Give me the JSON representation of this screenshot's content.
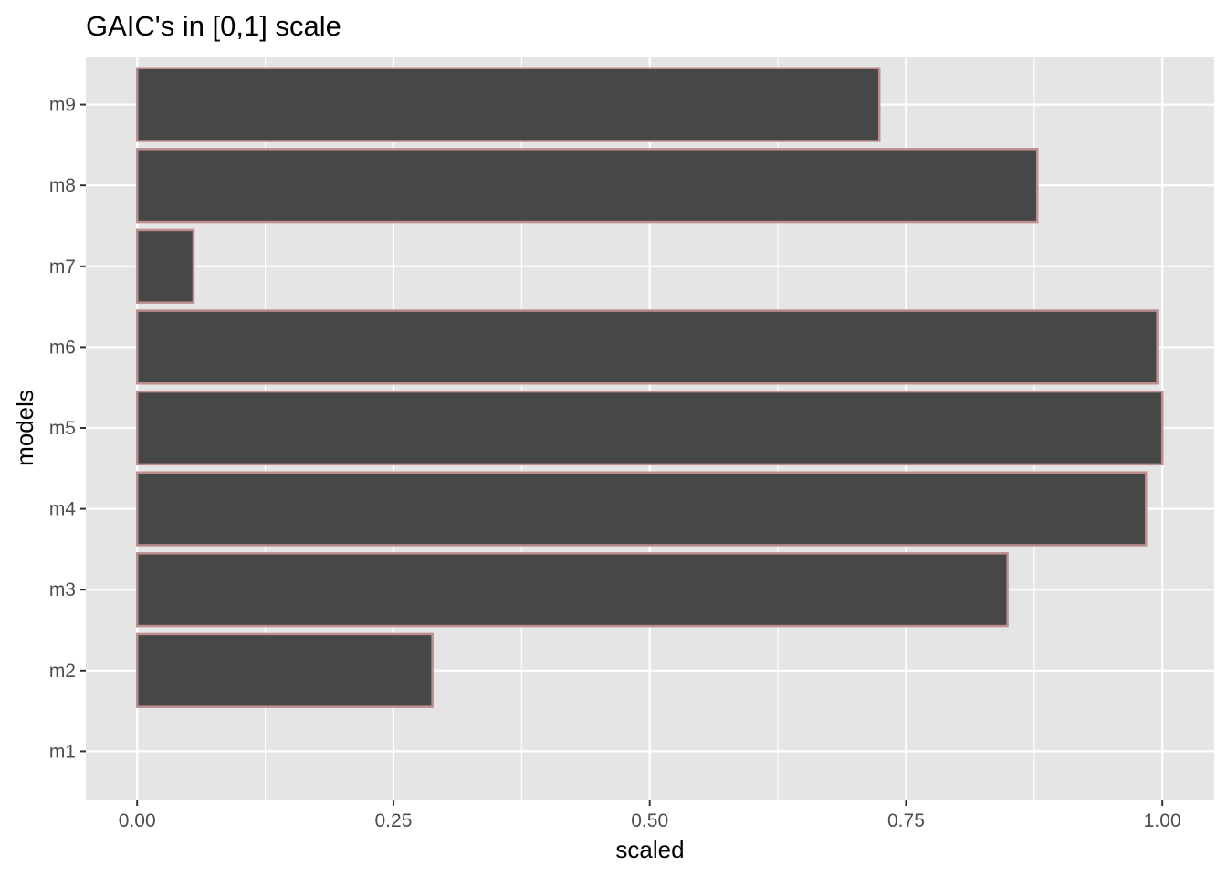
{
  "chart_data": {
    "type": "bar",
    "orientation": "horizontal",
    "title": "GAIC's in [0,1] scale",
    "xlabel": "scaled",
    "ylabel": "models",
    "categories": [
      "m1",
      "m2",
      "m3",
      "m4",
      "m5",
      "m6",
      "m7",
      "m8",
      "m9"
    ],
    "values": [
      0.0,
      0.288,
      0.849,
      0.984,
      1.0,
      0.995,
      0.055,
      0.878,
      0.724
    ],
    "xlim": [
      -0.05,
      1.05
    ],
    "xticks": [
      "0.00",
      "0.25",
      "0.50",
      "0.75",
      "1.00"
    ],
    "grid": true,
    "legend": "none",
    "colors": {
      "panel_background": "#e5e5e5",
      "grid": "#ffffff",
      "bar_fill": "#474747",
      "bar_outline": "#bc8f8f",
      "tick_label": "#4d4d4d",
      "tick_mark": "#333333"
    }
  }
}
